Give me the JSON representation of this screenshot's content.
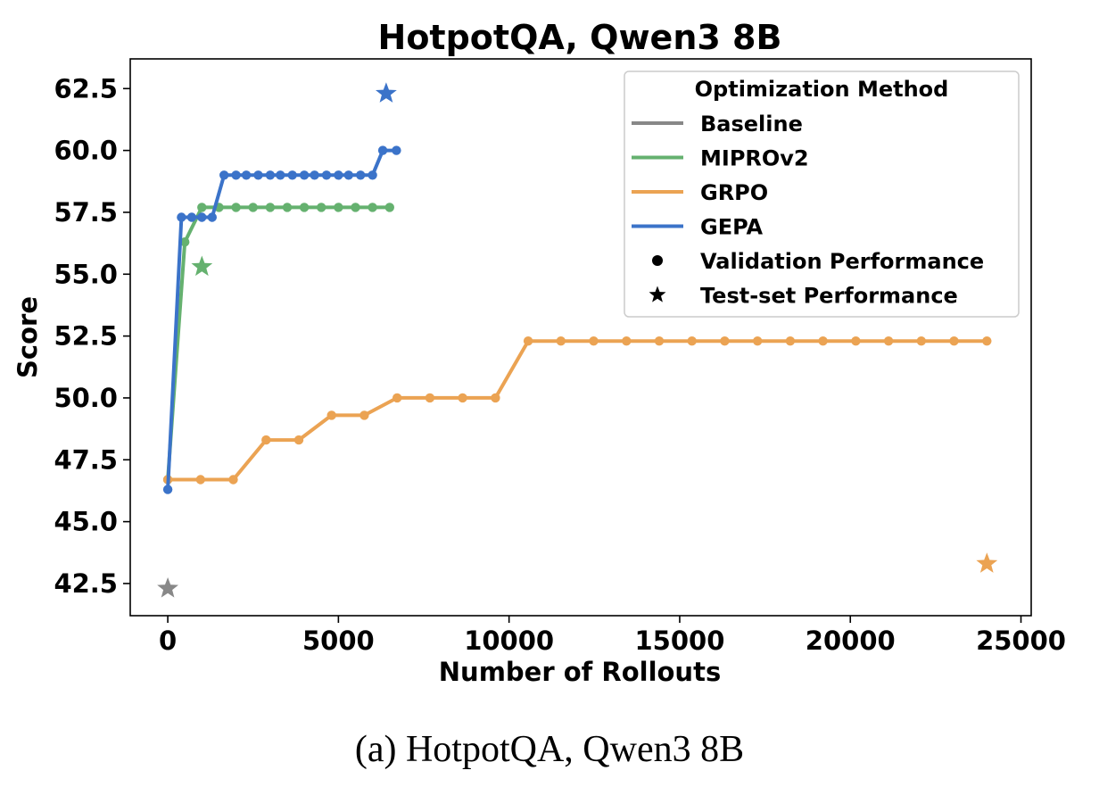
{
  "caption": "(a) HotpotQA, Qwen3 8B",
  "chart_data": {
    "type": "line",
    "title": "HotpotQA, Qwen3 8B",
    "xlabel": "Number of Rollouts",
    "ylabel": "Score",
    "xlim": [
      -1100,
      25300
    ],
    "ylim": [
      41.2,
      63.7
    ],
    "xticks": [
      0,
      5000,
      10000,
      15000,
      20000,
      25000
    ],
    "xtick_labels": [
      "0",
      "5000",
      "10000",
      "15000",
      "20000",
      "25000"
    ],
    "yticks": [
      42.5,
      45.0,
      47.5,
      50.0,
      52.5,
      55.0,
      57.5,
      60.0,
      62.5
    ],
    "ytick_labels": [
      "42.5",
      "45.0",
      "47.5",
      "50.0",
      "52.5",
      "55.0",
      "57.5",
      "60.0",
      "62.5"
    ],
    "grid": false,
    "legend": {
      "title": "Optimization Method",
      "placement": "top-right",
      "entries": [
        {
          "label": "Baseline",
          "kind": "line",
          "color": "#888888"
        },
        {
          "label": "MIPROv2",
          "kind": "line",
          "color": "#65b16f"
        },
        {
          "label": "GRPO",
          "kind": "line",
          "color": "#eba353"
        },
        {
          "label": "GEPA",
          "kind": "line",
          "color": "#3b73c9"
        },
        {
          "label": "Validation Performance",
          "kind": "dot",
          "color": "#000000"
        },
        {
          "label": "Test-set Performance",
          "kind": "star",
          "color": "#000000"
        }
      ]
    },
    "series": [
      {
        "name": "MIPROv2",
        "color": "#65b16f",
        "validation": {
          "x": [
            0,
            500,
            1000,
            1500,
            2000,
            2500,
            3000,
            3500,
            4000,
            4500,
            5000,
            5500,
            6000,
            6500
          ],
          "y": [
            46.7,
            56.3,
            57.7,
            57.7,
            57.7,
            57.7,
            57.7,
            57.7,
            57.7,
            57.7,
            57.7,
            57.7,
            57.7,
            57.7
          ]
        },
        "test": {
          "x": 1000,
          "y": 55.3
        }
      },
      {
        "name": "GRPO",
        "color": "#eba353",
        "validation": {
          "x": [
            0,
            960,
            1920,
            2880,
            3840,
            4800,
            5760,
            6720,
            7680,
            8640,
            9600,
            10560,
            11520,
            12480,
            13440,
            14400,
            15360,
            16320,
            17280,
            18240,
            19200,
            20160,
            21120,
            22080,
            23040,
            24000
          ],
          "y": [
            46.7,
            46.7,
            46.7,
            48.3,
            48.3,
            49.3,
            49.3,
            50.0,
            50.0,
            50.0,
            50.0,
            52.3,
            52.3,
            52.3,
            52.3,
            52.3,
            52.3,
            52.3,
            52.3,
            52.3,
            52.3,
            52.3,
            52.3,
            52.3,
            52.3,
            52.3
          ]
        },
        "test": {
          "x": 24000,
          "y": 43.3
        }
      },
      {
        "name": "GEPA",
        "color": "#3b73c9",
        "validation": {
          "x": [
            0,
            400,
            700,
            1000,
            1300,
            1650,
            2000,
            2300,
            2650,
            3000,
            3300,
            3650,
            4000,
            4300,
            4650,
            5000,
            5300,
            5650,
            6000,
            6300,
            6700
          ],
          "y": [
            46.3,
            57.3,
            57.3,
            57.3,
            57.3,
            59.0,
            59.0,
            59.0,
            59.0,
            59.0,
            59.0,
            59.0,
            59.0,
            59.0,
            59.0,
            59.0,
            59.0,
            59.0,
            59.0,
            60.0,
            60.0
          ]
        },
        "test": {
          "x": 6400,
          "y": 62.3
        }
      },
      {
        "name": "Baseline",
        "color": "#888888",
        "validation": {
          "x": [],
          "y": []
        },
        "test": {
          "x": 0,
          "y": 42.3
        }
      }
    ]
  }
}
